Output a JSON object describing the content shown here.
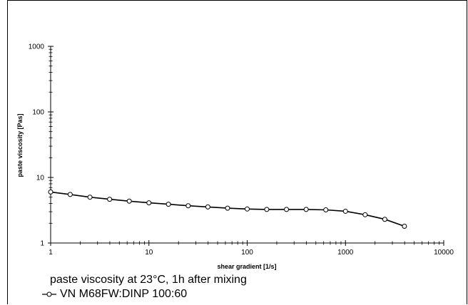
{
  "chart_data": {
    "type": "line",
    "title": "",
    "xlabel": "shear gradient  [1/s]",
    "ylabel": "paste viscosity  [Pas]",
    "x_scale": "log",
    "y_scale": "log",
    "xlim": [
      1,
      10000
    ],
    "ylim": [
      1,
      1000
    ],
    "x_ticks": [
      "1",
      "10",
      "100",
      "1000",
      "10000"
    ],
    "y_ticks": [
      "1",
      "10",
      "100",
      "1000"
    ],
    "grid": false,
    "legend_placement": "bottom-left",
    "series": [
      {
        "name": "VN M68FW:DINP 100:60",
        "marker": "open-circle",
        "color": "#000000",
        "x": [
          1,
          1.58,
          2.51,
          3.98,
          6.31,
          10,
          15.8,
          25.1,
          39.8,
          63.1,
          100,
          158,
          251,
          398,
          631,
          1000,
          1585,
          2512,
          3981
        ],
        "y": [
          6.0,
          5.5,
          5.0,
          4.65,
          4.35,
          4.1,
          3.9,
          3.7,
          3.55,
          3.4,
          3.3,
          3.25,
          3.25,
          3.25,
          3.2,
          3.05,
          2.7,
          2.3,
          1.8
        ]
      }
    ]
  },
  "caption": "paste viscosity at 23°C, 1h after mixing",
  "legend": {
    "label": "VN M68FW:DINP 100:60"
  }
}
